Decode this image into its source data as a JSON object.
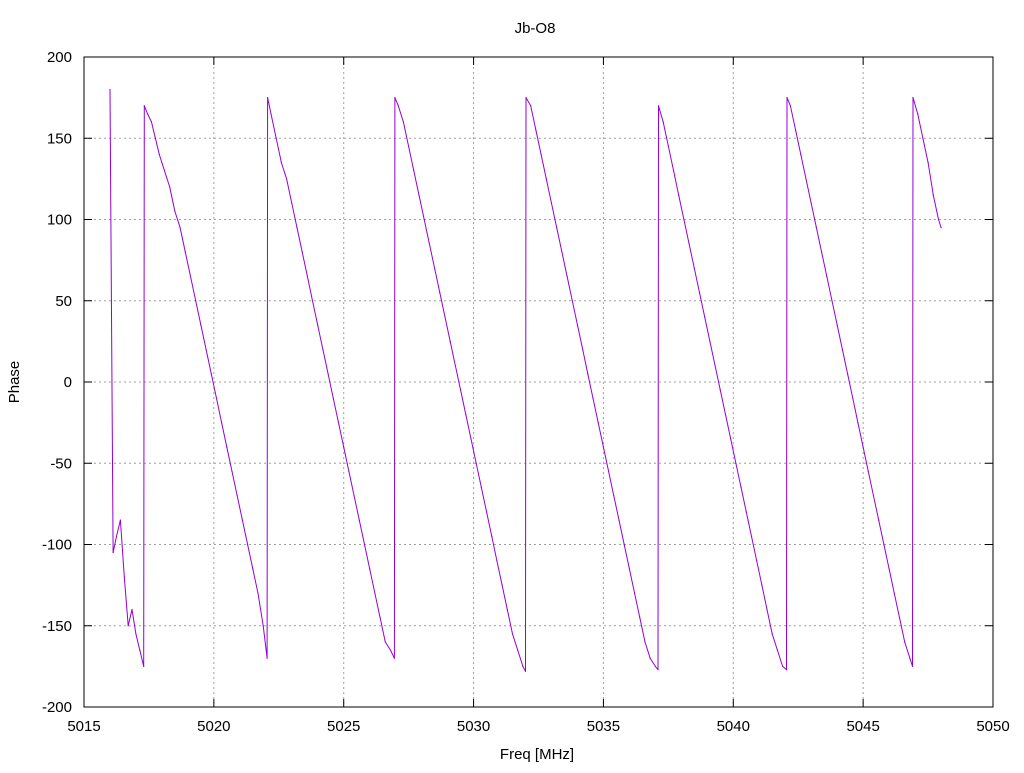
{
  "chart_data": {
    "type": "line",
    "title": "Jb-O8",
    "xlabel": "Freq [MHz]",
    "ylabel": "Phase",
    "xlim": [
      5015,
      5050
    ],
    "ylim": [
      -200,
      200
    ],
    "xticks": [
      5015,
      5020,
      5025,
      5030,
      5035,
      5040,
      5045,
      5050
    ],
    "yticks": [
      -200,
      -150,
      -100,
      -50,
      0,
      50,
      100,
      150,
      200
    ],
    "grid": true,
    "legend": "none",
    "series": [
      {
        "color": "#9400d3",
        "x": [
          5016.0,
          5016.12,
          5016.25,
          5016.4,
          5016.55,
          5016.7,
          5016.85,
          5017.0,
          5017.15,
          5017.3,
          5017.32,
          5017.45,
          5017.6,
          5017.75,
          5017.9,
          5018.1,
          5018.3,
          5018.5,
          5018.7,
          5018.9,
          5019.1,
          5019.3,
          5019.5,
          5019.7,
          5019.9,
          5020.1,
          5020.3,
          5020.5,
          5020.7,
          5020.9,
          5021.1,
          5021.3,
          5021.5,
          5021.7,
          5021.9,
          5022.05,
          5022.07,
          5022.2,
          5022.4,
          5022.6,
          5022.8,
          5023.0,
          5023.2,
          5023.4,
          5023.6,
          5023.8,
          5024.0,
          5024.2,
          5024.4,
          5024.6,
          5024.8,
          5025.0,
          5025.2,
          5025.4,
          5025.6,
          5025.8,
          5026.0,
          5026.2,
          5026.4,
          5026.6,
          5026.8,
          5026.95,
          5026.97,
          5027.1,
          5027.3,
          5027.5,
          5027.7,
          5027.9,
          5028.1,
          5028.3,
          5028.5,
          5028.7,
          5028.9,
          5029.1,
          5029.3,
          5029.5,
          5029.7,
          5029.9,
          5030.1,
          5030.3,
          5030.5,
          5030.7,
          5030.9,
          5031.1,
          5031.3,
          5031.5,
          5031.7,
          5031.9,
          5032.0,
          5032.02,
          5032.2,
          5032.4,
          5032.6,
          5032.8,
          5033.0,
          5033.2,
          5033.4,
          5033.6,
          5033.8,
          5034.0,
          5034.2,
          5034.4,
          5034.6,
          5034.8,
          5035.0,
          5035.2,
          5035.4,
          5035.6,
          5035.8,
          5036.0,
          5036.2,
          5036.4,
          5036.6,
          5036.8,
          5037.0,
          5037.1,
          5037.12,
          5037.3,
          5037.5,
          5037.7,
          5037.9,
          5038.1,
          5038.3,
          5038.5,
          5038.7,
          5038.9,
          5039.1,
          5039.3,
          5039.5,
          5039.7,
          5039.9,
          5040.1,
          5040.3,
          5040.5,
          5040.7,
          5040.9,
          5041.1,
          5041.3,
          5041.5,
          5041.7,
          5041.9,
          5042.05,
          5042.07,
          5042.2,
          5042.4,
          5042.6,
          5042.8,
          5043.0,
          5043.2,
          5043.4,
          5043.6,
          5043.8,
          5044.0,
          5044.2,
          5044.4,
          5044.6,
          5044.8,
          5045.0,
          5045.2,
          5045.4,
          5045.6,
          5045.8,
          5046.0,
          5046.2,
          5046.4,
          5046.6,
          5046.8,
          5046.9,
          5046.92,
          5047.1,
          5047.3,
          5047.5,
          5047.7,
          5047.9,
          5048.0
        ],
        "y": [
          180,
          -105,
          -95,
          -85,
          -120,
          -150,
          -140,
          -155,
          -165,
          -175,
          170,
          165,
          160,
          150,
          140,
          130,
          120,
          105,
          95,
          80,
          65,
          50,
          35,
          20,
          5,
          -10,
          -25,
          -40,
          -55,
          -70,
          -85,
          -100,
          -115,
          -130,
          -150,
          -170,
          175,
          165,
          150,
          135,
          125,
          110,
          95,
          80,
          65,
          50,
          35,
          20,
          5,
          -10,
          -25,
          -40,
          -55,
          -70,
          -85,
          -100,
          -115,
          -130,
          -145,
          -160,
          -165,
          -170,
          175,
          170,
          160,
          145,
          130,
          115,
          100,
          85,
          70,
          55,
          40,
          25,
          10,
          -5,
          -20,
          -35,
          -50,
          -65,
          -80,
          -95,
          -110,
          -125,
          -140,
          -155,
          -165,
          -175,
          -178,
          175,
          170,
          155,
          140,
          125,
          110,
          95,
          80,
          65,
          50,
          35,
          20,
          5,
          -10,
          -25,
          -40,
          -55,
          -70,
          -85,
          -100,
          -115,
          -130,
          -145,
          -160,
          -170,
          -175,
          -177,
          170,
          160,
          145,
          130,
          115,
          100,
          85,
          70,
          55,
          40,
          25,
          10,
          -5,
          -20,
          -35,
          -50,
          -65,
          -80,
          -95,
          -110,
          -125,
          -140,
          -155,
          -165,
          -175,
          -177,
          175,
          170,
          155,
          140,
          125,
          110,
          95,
          80,
          65,
          50,
          35,
          20,
          5,
          -10,
          -25,
          -40,
          -55,
          -70,
          -85,
          -100,
          -115,
          -130,
          -145,
          -160,
          -170,
          -175,
          175,
          165,
          150,
          135,
          115,
          100,
          95
        ]
      }
    ]
  }
}
